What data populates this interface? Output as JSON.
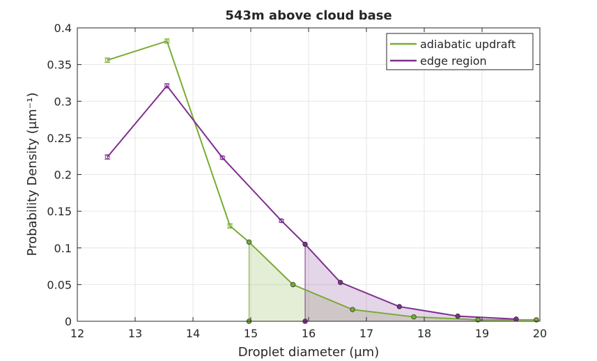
{
  "chart_data": {
    "type": "line",
    "title": "543m above cloud base",
    "xlabel": "Droplet diameter (μm)",
    "ylabel": "Probability Density (μm⁻¹)",
    "xlim": [
      12,
      20
    ],
    "ylim": [
      0,
      0.4
    ],
    "xticks": [
      "12",
      "13",
      "14",
      "15",
      "16",
      "17",
      "18",
      "19",
      "20"
    ],
    "yticks": [
      "0",
      "0.05",
      "0.1",
      "0.15",
      "0.2",
      "0.25",
      "0.3",
      "0.35",
      "0.4"
    ],
    "grid": true,
    "legend_position": "top-right",
    "series": [
      {
        "name": "adiabatic updraft",
        "color": "#77ac30",
        "x": [
          12.52,
          13.55,
          14.64,
          14.97,
          15.73,
          16.76,
          17.82,
          18.93,
          19.94
        ],
        "y": [
          0.356,
          0.382,
          0.13,
          0.108,
          0.05,
          0.016,
          0.006,
          0.002,
          0.002
        ],
        "error": [
          0.003,
          0.003,
          0.003,
          0,
          0,
          0,
          0,
          0,
          0
        ],
        "shaded_from_x": 14.97
      },
      {
        "name": "edge region",
        "color": "#7e2f8e",
        "x": [
          12.52,
          13.55,
          14.51,
          15.53,
          15.94,
          16.55,
          17.57,
          18.58,
          19.59
        ],
        "y": [
          0.224,
          0.321,
          0.223,
          0.137,
          0.105,
          0.053,
          0.02,
          0.007,
          0.003
        ],
        "error": [
          0.003,
          0.003,
          0.002,
          0.002,
          0,
          0,
          0,
          0,
          0
        ],
        "shaded_from_x": 15.94
      }
    ]
  }
}
